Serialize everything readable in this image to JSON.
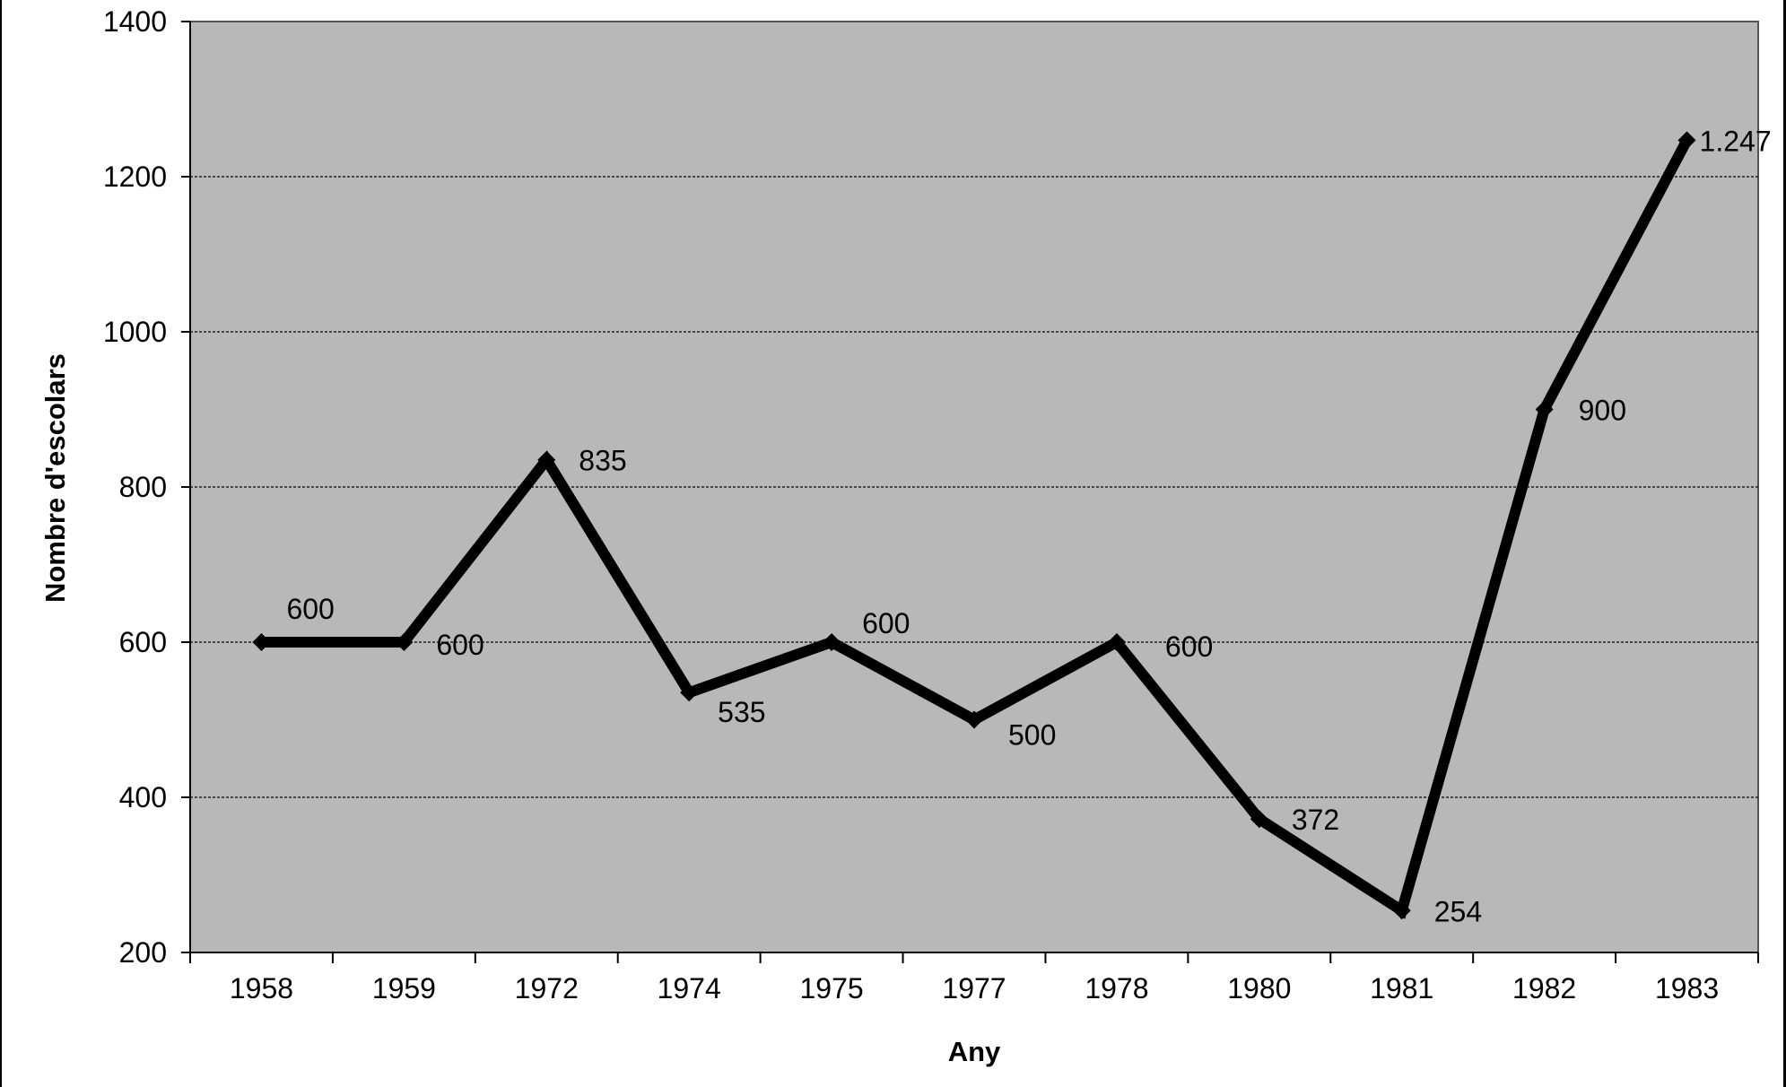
{
  "chart_data": {
    "type": "line",
    "title": "",
    "xlabel": "Any",
    "ylabel": "Nombre d'escolars",
    "categories": [
      "1958",
      "1959",
      "1972",
      "1974",
      "1975",
      "1977",
      "1978",
      "1980",
      "1981",
      "1982",
      "1983"
    ],
    "series": [
      {
        "values": [
          600,
          600,
          835,
          535,
          600,
          500,
          600,
          372,
          254,
          900,
          1247
        ],
        "labels": [
          "600",
          "600",
          "835",
          "535",
          "600",
          "500",
          "600",
          "372",
          "254",
          "900",
          "1.247"
        ]
      }
    ],
    "ylim": [
      200,
      1400
    ],
    "yticks": [
      "200",
      "400",
      "600",
      "800",
      "1000",
      "1200",
      "1400"
    ],
    "grid": true,
    "legend": "none",
    "colors": {
      "plot_background": "#b8b8b8",
      "line": "#000000",
      "gridline": "#000000"
    }
  }
}
